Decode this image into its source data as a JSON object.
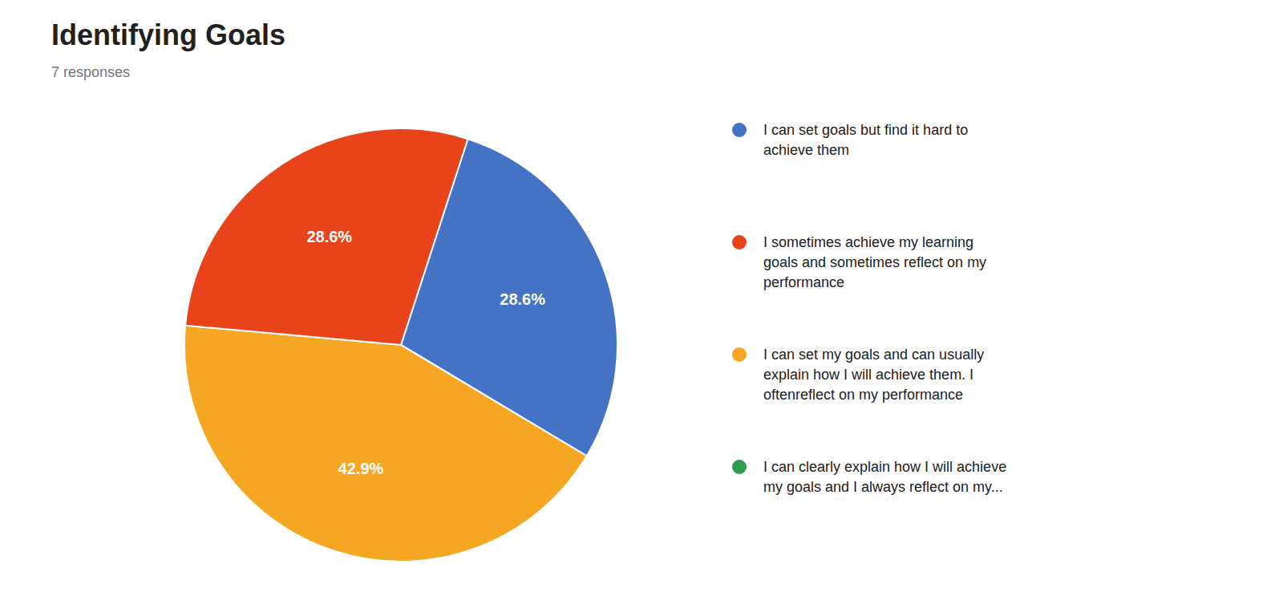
{
  "chart_data": {
    "type": "pie",
    "title": "Identifying Goals",
    "subtitle": "7 responses",
    "values": [
      28.6,
      42.9,
      28.6
    ],
    "value_labels": [
      "28.6%",
      "42.9%",
      "28.6%"
    ],
    "data_labels": true,
    "colors": [
      "#4472C4",
      "#F5A623",
      "#E8431A"
    ],
    "legend_labels": [
      "I can set goals but find it hard to\nachieve them",
      "I sometimes achieve my learning\ngoals and sometimes reflect on my\nperformance",
      "I can set my goals and can usually\nexplain how I will achieve them. I\noftenreflect on my performance",
      "I can clearly explain how I will achieve\nmy goals and I always reflect on my..."
    ],
    "legend_colors": [
      "#4472C4",
      "#E8431A",
      "#F5A623",
      "#2E9B4E"
    ]
  }
}
